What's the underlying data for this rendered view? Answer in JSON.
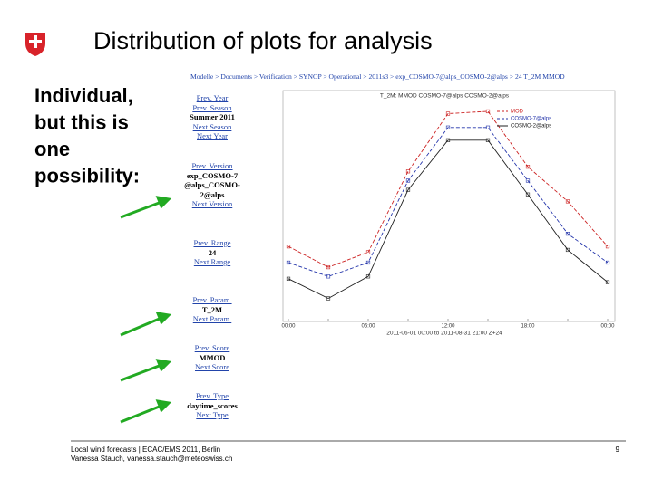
{
  "slide": {
    "title": "Distribution of plots for analysis",
    "text_lines": [
      "Individual,",
      "but this is",
      "one",
      "possibility:"
    ],
    "footer_lines": [
      "Local wind forecasts | ECAC/EMS 2011, Berlin",
      "Vanessa Stauch, vanessa.stauch@meteoswiss.ch"
    ],
    "page_number": "9"
  },
  "webpage": {
    "breadcrumb": "Modelle > Documents > Verification > SYNOP > Operational > 2011s3 > exp_COSMO-7@alps_COSMO-2@alps > 24 T_2M MMOD",
    "nav": [
      [
        "Prev. Year",
        "Prev. Season",
        "Summer 2011",
        "Next Season",
        "Next Year"
      ],
      [
        "Prev. Version",
        "exp_COSMO-7@alps_COSMO-2@alps",
        "Next Version"
      ],
      [
        "Prev. Range",
        "24",
        "Next Range"
      ],
      [
        "Prev. Param.",
        "T_2M",
        "Next Param."
      ],
      [
        "Prev. Score",
        "MMOD",
        "Next Score"
      ],
      [
        "Prev. Type",
        "daytime_scores",
        "Next Type"
      ]
    ]
  },
  "chart_data": {
    "type": "line",
    "title": "T_2M: MMOD COSMO-7@alps COSMO-2@alps",
    "x_caption": "2011-06-01 00:00 to 2011-08-31 21:00 Z+24",
    "categories": [
      "00:00",
      null,
      "06:00",
      null,
      "12:00",
      null,
      "18:00",
      null,
      "00:00"
    ],
    "ylim": [
      0,
      10
    ],
    "series": [
      {
        "name": "MOD",
        "color": "#cc2222",
        "dash": true,
        "values": [
          3.25,
          2.35,
          3.0,
          6.5,
          9.0,
          9.1,
          6.7,
          5.2,
          3.25
        ]
      },
      {
        "name": "COSMO-7@alps",
        "color": "#2233aa",
        "dash": true,
        "values": [
          2.55,
          1.95,
          2.55,
          6.1,
          8.4,
          8.4,
          6.1,
          3.8,
          2.55
        ]
      },
      {
        "name": "COSMO-2@alps",
        "color": "#222222",
        "dash": false,
        "values": [
          1.85,
          1.0,
          1.95,
          5.7,
          7.85,
          7.85,
          5.5,
          3.1,
          1.7
        ]
      }
    ]
  }
}
